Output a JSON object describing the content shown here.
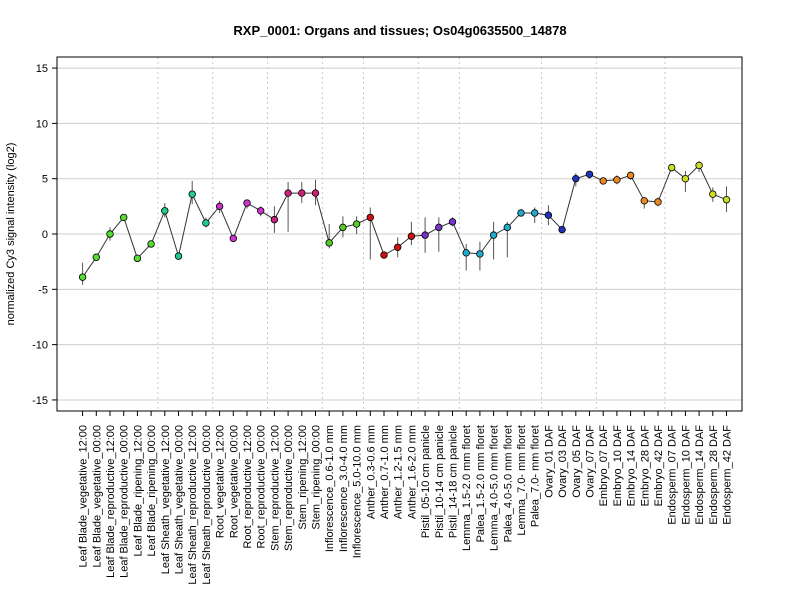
{
  "chart_data": {
    "type": "line",
    "title": "RXP_0001: Organs and tissues; Os04g0635500_14878",
    "xlabel": "",
    "ylabel": "normalized Cy3 signal intensity (log2)",
    "ylim": [
      -16,
      16
    ],
    "yticks": [
      -15,
      -10,
      -5,
      0,
      5,
      10,
      15
    ],
    "grid": true,
    "categories": [
      "Leaf Blade_vegetative_12:00",
      "Leaf Blade_vegetative_00:00",
      "Leaf Blade_reproductive_12:00",
      "Leaf Blade_reproductive_00:00",
      "Leaf Blade_ripening_12:00",
      "Leaf Blade_ripening_00:00",
      "Leaf Sheath_vegetative_12:00",
      "Leaf Sheath_vegetative_00:00",
      "Leaf Sheath_reproductive_12:00",
      "Leaf Sheath_reproductive_00:00",
      "Root_vegetative_12:00",
      "Root_vegetative_00:00",
      "Root_reproductive_12:00",
      "Root_reproductive_00:00",
      "Stem_reproductive_12:00",
      "Stem_reproductive_00:00",
      "Stem_ripening_12:00",
      "Stem_ripening_00:00",
      "Inflorescence_0.6-1.0 mm",
      "Inflorescence_3.0-4.0 mm",
      "Inflorescence_5.0-10.0 mm",
      "Anther_0.3-0.6 mm",
      "Anther_0.7-1.0 mm",
      "Anther_1.2-1.5 mm",
      "Anther_1.6-2.0 mm",
      "Pistil_05-10 cm panicle",
      "Pistil_10-14 cm panicle",
      "Pistil_14-18 cm panicle",
      "Lemma_1.5-2.0 mm floret",
      "Palea_1.5-2.0 mm floret",
      "Lemma_4.0-5.0 mm floret",
      "Palea_4.0-5.0 mm floret",
      "Lemma_7.0- mm floret",
      "Palea_7.0- mm floret",
      "Ovary_01 DAF",
      "Ovary_03 DAF",
      "Ovary_05 DAF",
      "Ovary_07 DAF",
      "Embryo_07 DAF",
      "Embryo_10 DAF",
      "Embryo_14 DAF",
      "Embryo_28 DAF",
      "Embryo_42 DAF",
      "Endosperm_07 DAF",
      "Endosperm_10 DAF",
      "Endosperm_14 DAF",
      "Endosperm_28 DAF",
      "Endosperm_42 DAF"
    ],
    "values": [
      -3.9,
      -2.1,
      0.0,
      1.5,
      -2.2,
      -0.9,
      2.1,
      -2.0,
      3.6,
      1.0,
      2.5,
      -0.4,
      2.8,
      2.1,
      1.3,
      3.7,
      3.7,
      3.7,
      -0.8,
      0.6,
      0.9,
      1.5,
      -1.9,
      -1.2,
      -0.2,
      -0.1,
      0.6,
      1.1,
      -1.7,
      -1.8,
      -0.1,
      0.6,
      1.9,
      1.9,
      1.7,
      0.4,
      5.0,
      5.4,
      4.8,
      4.9,
      5.3,
      3.0,
      2.9,
      6.0,
      5.0,
      6.2,
      3.6,
      3.1
    ],
    "err_low": [
      -4.6,
      -2.3,
      -0.6,
      1.3,
      -2.4,
      -1.1,
      1.5,
      -2.2,
      2.7,
      0.6,
      1.9,
      -0.7,
      2.3,
      1.6,
      0.1,
      0.2,
      2.8,
      2.6,
      -1.3,
      -0.3,
      0.0,
      -2.3,
      -2.1,
      -2.1,
      -1.0,
      -1.7,
      -1.6,
      0.7,
      -3.3,
      -3.3,
      -2.3,
      -2.1,
      1.6,
      1.0,
      0.8,
      0.3,
      4.3,
      5.0,
      4.5,
      4.5,
      4.9,
      2.3,
      2.5,
      5.7,
      3.8,
      5.6,
      2.9,
      2.0
    ],
    "err_high": [
      -2.6,
      -1.8,
      0.6,
      1.7,
      -2.0,
      -0.7,
      2.8,
      -1.8,
      4.8,
      1.5,
      3.0,
      -0.1,
      3.1,
      2.5,
      2.5,
      4.7,
      4.7,
      4.9,
      0.9,
      1.6,
      1.6,
      2.4,
      -1.7,
      -0.3,
      1.1,
      1.5,
      1.5,
      1.5,
      -0.9,
      -0.7,
      1.1,
      1.1,
      2.2,
      2.4,
      2.6,
      0.6,
      5.5,
      5.7,
      5.1,
      5.3,
      5.6,
      3.3,
      3.3,
      6.3,
      5.7,
      6.6,
      4.2,
      4.3
    ],
    "colors": [
      "#55dd33",
      "#55dd33",
      "#55dd33",
      "#55dd33",
      "#55dd33",
      "#55dd33",
      "#22cc88",
      "#22cc88",
      "#22cc88",
      "#22cc88",
      "#cc33cc",
      "#cc33cc",
      "#cc33cc",
      "#cc33cc",
      "#cc2277",
      "#cc2277",
      "#cc2277",
      "#cc2277",
      "#55cc22",
      "#55cc22",
      "#55cc22",
      "#cc1111",
      "#cc1111",
      "#cc1111",
      "#cc1111",
      "#7733cc",
      "#7733cc",
      "#7733cc",
      "#22aacc",
      "#22aacc",
      "#22aacc",
      "#22aacc",
      "#22aacc",
      "#22aacc",
      "#2233bb",
      "#2233bb",
      "#2233bb",
      "#2233bb",
      "#ee8822",
      "#ee8822",
      "#ee8822",
      "#ee8822",
      "#ee8822",
      "#ccdd22",
      "#ccdd22",
      "#ccdd22",
      "#ccdd22",
      "#ccdd22"
    ],
    "group_separators_after": [
      5,
      9,
      13,
      17,
      20,
      24,
      27,
      33,
      37,
      42
    ]
  }
}
